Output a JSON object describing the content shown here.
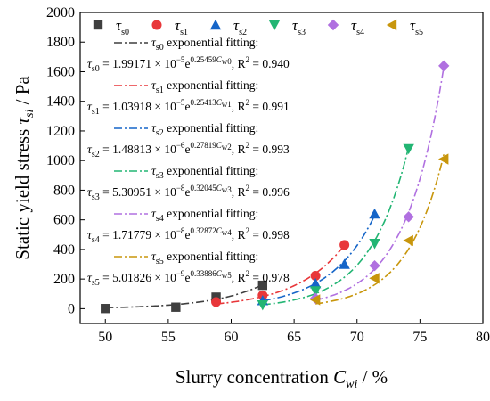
{
  "chart_data": {
    "type": "scatter",
    "xlabel": "Slurry concentration Cwi / %",
    "ylabel": "Static yield stress τsi / Pa",
    "xlim": [
      48,
      80
    ],
    "ylim": [
      -100,
      2000
    ],
    "xticks": [
      "50",
      "55",
      "60",
      "65",
      "70",
      "75",
      "80"
    ],
    "yticks": [
      "0",
      "200",
      "400",
      "600",
      "800",
      "1000",
      "1200",
      "1400",
      "1600",
      "1800",
      "2000"
    ],
    "grid": false,
    "legend_position": "top-left",
    "fit_suffix": "exponential fitting:",
    "series": [
      {
        "name": "τs0",
        "sub": "s0",
        "marker": "square",
        "color": "#3f3f3f",
        "points": [
          [
            50.0,
            1
          ],
          [
            55.6,
            10
          ],
          [
            58.8,
            78
          ],
          [
            62.5,
            158
          ]
        ],
        "fit": {
          "a": 1.99171e-05,
          "b": 0.25459,
          "x_range": [
            50,
            62.5
          ]
        },
        "eq_coef": "1.99171",
        "eq_exp": "−5",
        "eq_b": "0.25459",
        "eq_xsub": "w0",
        "r2": "0.940"
      },
      {
        "name": "τs1",
        "sub": "s1",
        "marker": "circle",
        "color": "#e8373a",
        "points": [
          [
            58.8,
            45
          ],
          [
            62.5,
            90
          ],
          [
            66.7,
            222
          ],
          [
            69.0,
            430
          ]
        ],
        "fit": {
          "a": 1.03918e-05,
          "b": 0.25413,
          "x_range": [
            58.8,
            69.0
          ]
        },
        "eq_coef": "1.03918",
        "eq_exp": "−5",
        "eq_b": "0.25413",
        "eq_xsub": "w1",
        "r2": "0.991"
      },
      {
        "name": "τs2",
        "sub": "s2",
        "marker": "triangle-up",
        "color": "#1565c8",
        "points": [
          [
            62.5,
            55
          ],
          [
            66.7,
            170
          ],
          [
            69.0,
            300
          ],
          [
            71.4,
            640
          ]
        ],
        "fit": {
          "a": 1.48813e-06,
          "b": 0.27819,
          "x_range": [
            62.5,
            71.4
          ]
        },
        "eq_coef": "1.48813",
        "eq_exp": "−6",
        "eq_b": "0.27819",
        "eq_xsub": "w2",
        "r2": "0.993"
      },
      {
        "name": "τs3",
        "sub": "s3",
        "marker": "triangle-down",
        "color": "#22b573",
        "points": [
          [
            62.5,
            25
          ],
          [
            66.7,
            120
          ],
          [
            71.4,
            440
          ],
          [
            74.1,
            1080
          ]
        ],
        "fit": {
          "a": 5.30951e-08,
          "b": 0.32045,
          "x_range": [
            62.5,
            74.1
          ]
        },
        "eq_coef": "5.30951",
        "eq_exp": "−8",
        "eq_b": "0.32045",
        "eq_xsub": "w3",
        "r2": "0.996"
      },
      {
        "name": "τs4",
        "sub": "s4",
        "marker": "diamond",
        "color": "#b070e0",
        "points": [
          [
            66.7,
            70
          ],
          [
            71.4,
            290
          ],
          [
            74.1,
            620
          ],
          [
            76.9,
            1640
          ]
        ],
        "fit": {
          "a": 1.71779e-08,
          "b": 0.32872,
          "x_range": [
            66.7,
            76.9
          ]
        },
        "eq_coef": "1.71779",
        "eq_exp": "−8",
        "eq_b": "0.32872",
        "eq_xsub": "w4",
        "r2": "0.998"
      },
      {
        "name": "τs5",
        "sub": "s5",
        "marker": "triangle-left",
        "color": "#c8960c",
        "points": [
          [
            66.7,
            60
          ],
          [
            71.4,
            205
          ],
          [
            74.1,
            460
          ],
          [
            76.9,
            1010
          ]
        ],
        "fit": {
          "a": 5.01826e-09,
          "b": 0.33886,
          "x_range": [
            66.7,
            76.9
          ]
        },
        "eq_coef": "5.01826",
        "eq_exp": "−9",
        "eq_b": "0.33886",
        "eq_xsub": "w5",
        "r2": "0.978"
      }
    ]
  }
}
